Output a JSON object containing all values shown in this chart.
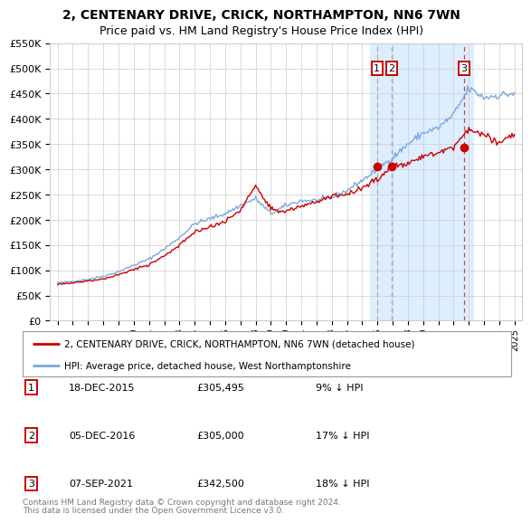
{
  "title": "2, CENTENARY DRIVE, CRICK, NORTHAMPTON, NN6 7WN",
  "subtitle": "Price paid vs. HM Land Registry's House Price Index (HPI)",
  "red_line_label": "2, CENTENARY DRIVE, CRICK, NORTHAMPTON, NN6 7WN (detached house)",
  "blue_line_label": "HPI: Average price, detached house, West Northamptonshire",
  "sale_points": [
    {
      "label": "1",
      "date": "18-DEC-2015",
      "price": 305495,
      "pct": "9% ↓ HPI",
      "x": 2015.96
    },
    {
      "label": "2",
      "date": "05-DEC-2016",
      "price": 305000,
      "pct": "17% ↓ HPI",
      "x": 2016.92
    },
    {
      "label": "3",
      "date": "07-SEP-2021",
      "price": 342500,
      "pct": "18% ↓ HPI",
      "x": 2021.68
    }
  ],
  "ylim": [
    0,
    550000
  ],
  "xlim": [
    1994.5,
    2025.5
  ],
  "yticks": [
    0,
    50000,
    100000,
    150000,
    200000,
    250000,
    300000,
    350000,
    400000,
    450000,
    500000,
    550000
  ],
  "ytick_labels": [
    "£0",
    "£50K",
    "£100K",
    "£150K",
    "£200K",
    "£250K",
    "£300K",
    "£350K",
    "£400K",
    "£450K",
    "£500K",
    "£550K"
  ],
  "xticks": [
    1995,
    1996,
    1997,
    1998,
    1999,
    2000,
    2001,
    2002,
    2003,
    2004,
    2005,
    2006,
    2007,
    2008,
    2009,
    2010,
    2011,
    2012,
    2013,
    2014,
    2015,
    2016,
    2017,
    2018,
    2019,
    2020,
    2021,
    2022,
    2023,
    2024,
    2025
  ],
  "red_color": "#cc0000",
  "blue_color": "#7aaadd",
  "vline_color_gray": "#aaaaaa",
  "vline_color_red": "#cc4444",
  "bg_highlight_color": "#ddeeff",
  "footnote_line1": "Contains HM Land Registry data © Crown copyright and database right 2024.",
  "footnote_line2": "This data is licensed under the Open Government Licence v3.0.",
  "hpi_years": [
    1995,
    1996,
    1997,
    1998,
    1999,
    2000,
    2001,
    2002,
    2003,
    2004,
    2005,
    2006,
    2007,
    2008,
    2009,
    2010,
    2011,
    2012,
    2013,
    2014,
    2015,
    2016,
    2017,
    2018,
    2019,
    2020,
    2021,
    2022,
    2023,
    2024,
    2025
  ],
  "hpi_values": [
    75000,
    78000,
    82000,
    88000,
    97000,
    110000,
    122000,
    142000,
    165000,
    192000,
    202000,
    212000,
    228000,
    242000,
    212000,
    228000,
    238000,
    238000,
    244000,
    258000,
    278000,
    300000,
    323000,
    350000,
    372000,
    382000,
    408000,
    460000,
    442000,
    447000,
    450000
  ],
  "red_values": [
    72000,
    75000,
    79000,
    83000,
    91000,
    102000,
    110000,
    128000,
    150000,
    175000,
    185000,
    197000,
    218000,
    268000,
    220000,
    217000,
    227000,
    237000,
    246000,
    250000,
    263000,
    280000,
    308000,
    313000,
    325000,
    333000,
    342500,
    378000,
    368000,
    352000,
    368000
  ]
}
